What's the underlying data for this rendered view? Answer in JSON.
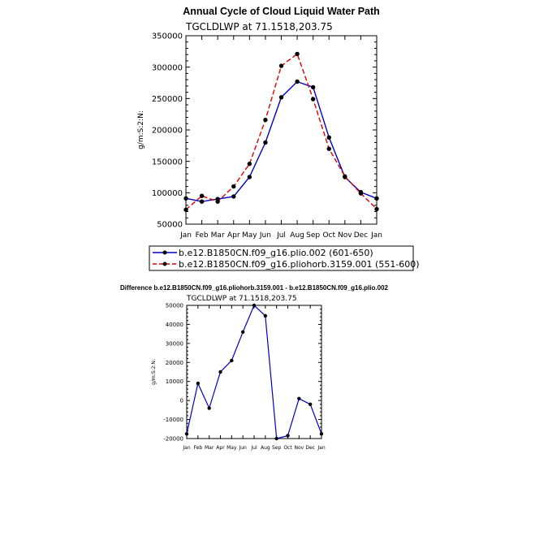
{
  "chart_data": [
    {
      "type": "line",
      "title": "Annual Cycle of Cloud Liquid Water Path",
      "subtitle": "TGCLDLWP at 71.1518,203.75",
      "xlabel": "",
      "ylabel": "g/m:S:2:N:",
      "categories": [
        "Jan",
        "Feb",
        "Mar",
        "Apr",
        "May",
        "Jun",
        "Jul",
        "Aug",
        "Sep",
        "Oct",
        "Nov",
        "Dec",
        "Jan"
      ],
      "ylim": [
        50000,
        350000
      ],
      "yticks": [
        "50000",
        "100000",
        "150000",
        "200000",
        "250000",
        "300000",
        "350000"
      ],
      "grid": false,
      "legend_position": "bottom",
      "series": [
        {
          "name": "b.e12.B1850CN.f09_g16.plio.002 (601-650)",
          "color": "#0000cc",
          "dash": "solid",
          "values": [
            91000,
            86000,
            90000,
            94000,
            125000,
            180000,
            252000,
            277000,
            268000,
            188000,
            125000,
            101000,
            91000
          ]
        },
        {
          "name": "b.e12.B1850CN.f09_g16.pliohorb.3159.001 (551-600)",
          "color": "#dd0000",
          "dash": "dashed",
          "values": [
            73000,
            95000,
            86000,
            110000,
            146000,
            216000,
            302000,
            321000,
            249000,
            170000,
            126000,
            99000,
            74000
          ]
        }
      ]
    },
    {
      "type": "line",
      "title": "Difference b.e12.B1850CN.f09_g16.pliohorb.3159.001 - b.e12.B1850CN.f09_g16.plio.002",
      "subtitle": "TGCLDLWP at 71.1518,203.75",
      "xlabel": "",
      "ylabel": "g/m:S:2:N:",
      "categories": [
        "Jan",
        "Feb",
        "Mar",
        "Apr",
        "May",
        "Jun",
        "Jul",
        "Aug",
        "Sep",
        "Oct",
        "Nov",
        "Dec",
        "Jan"
      ],
      "ylim": [
        -20000,
        50000
      ],
      "yticks": [
        "-20000",
        "-10000",
        "0",
        "10000",
        "20000",
        "30000",
        "40000",
        "50000"
      ],
      "grid": false,
      "series": [
        {
          "color": "#0000cc",
          "values": [
            -17500,
            9000,
            -4000,
            15000,
            21000,
            36000,
            50000,
            44500,
            -20000,
            -18500,
            1000,
            -2000,
            -17500
          ]
        }
      ]
    }
  ]
}
